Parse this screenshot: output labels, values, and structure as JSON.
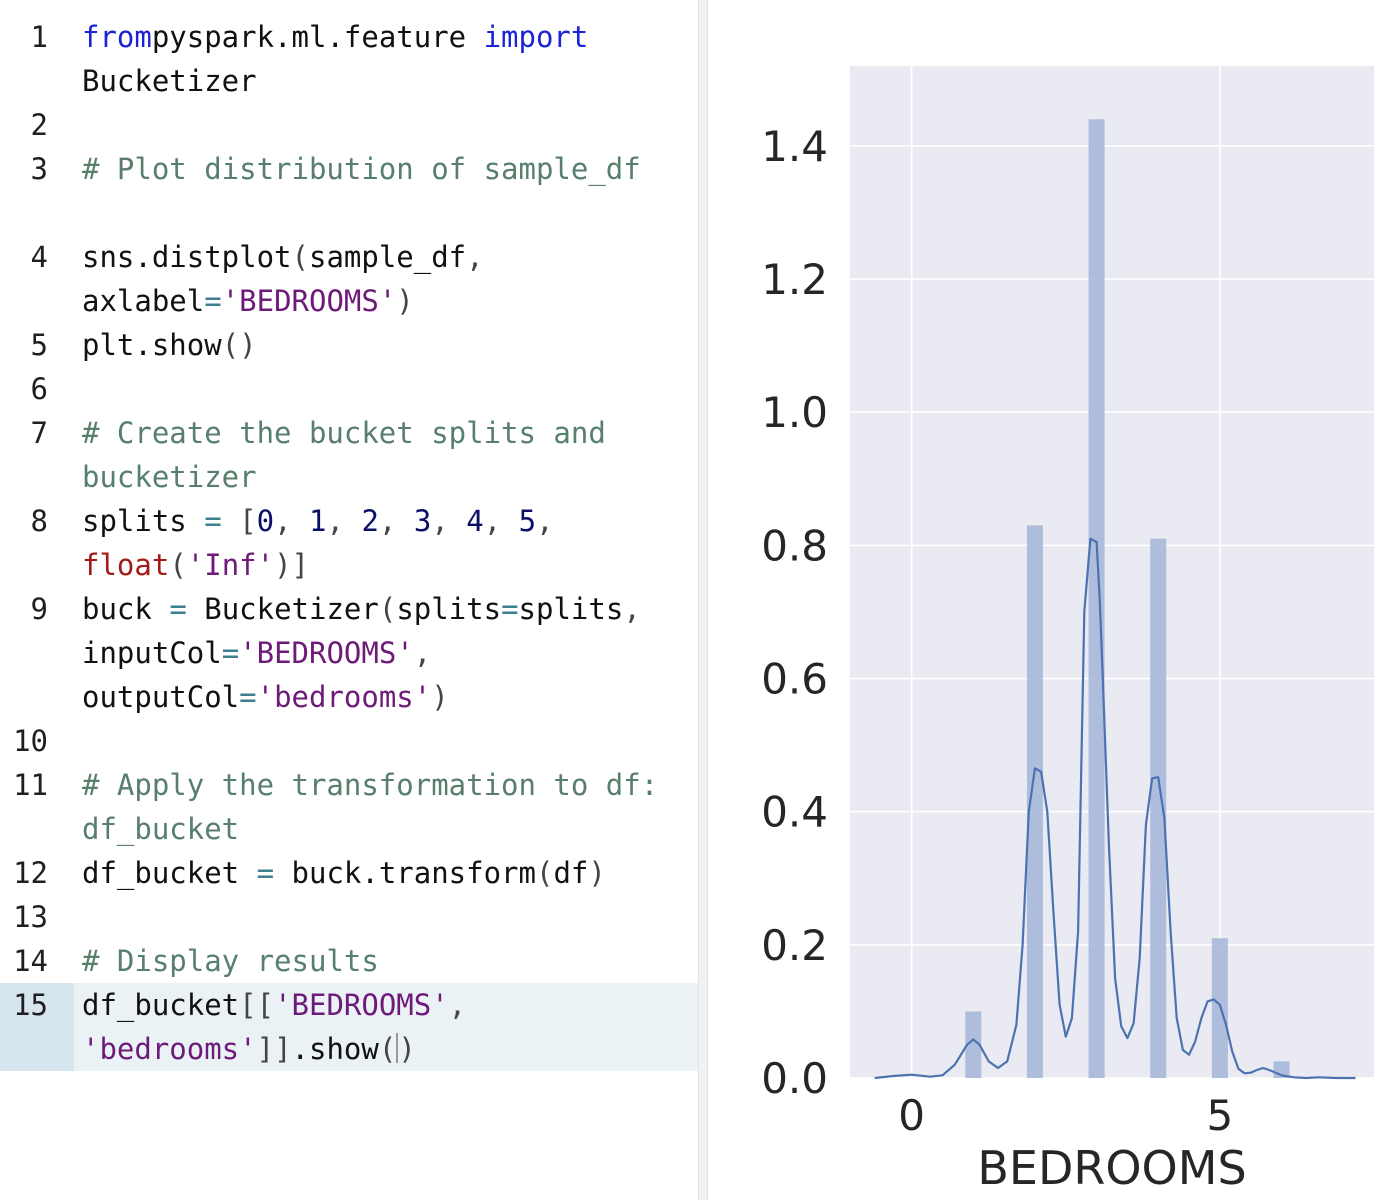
{
  "editor": {
    "lines": [
      {
        "num": "1",
        "wraps": 2,
        "tokens": [
          [
            "k",
            "from"
          ],
          [
            "",
            "pyspark.ml.feature "
          ],
          [
            "k",
            "import"
          ],
          [
            "",
            " Bucketizer"
          ]
        ]
      },
      {
        "num": "2",
        "wraps": 1,
        "tokens": []
      },
      {
        "num": "3",
        "wraps": 2,
        "tokens": [
          [
            "c",
            "# Plot distribution of sample_df"
          ]
        ]
      },
      {
        "num": "4",
        "wraps": 2,
        "tokens": [
          [
            "",
            "sns.distplot"
          ],
          [
            "p",
            "("
          ],
          [
            "",
            "sample_df"
          ],
          [
            "p",
            ","
          ],
          [
            "",
            " axlabel"
          ],
          [
            "o",
            "="
          ],
          [
            "s",
            "'BEDROOMS'"
          ],
          [
            "p",
            ")"
          ]
        ]
      },
      {
        "num": "5",
        "wraps": 1,
        "tokens": [
          [
            "",
            "plt.show"
          ],
          [
            "p",
            "()"
          ]
        ]
      },
      {
        "num": "6",
        "wraps": 1,
        "tokens": []
      },
      {
        "num": "7",
        "wraps": 2,
        "tokens": [
          [
            "c",
            "# Create the bucket splits and bucketizer"
          ]
        ]
      },
      {
        "num": "8",
        "wraps": 2,
        "tokens": [
          [
            "",
            "splits "
          ],
          [
            "o",
            "="
          ],
          [
            "",
            " "
          ],
          [
            "p",
            "["
          ],
          [
            "n",
            "0"
          ],
          [
            "p",
            ","
          ],
          [
            "",
            " "
          ],
          [
            "n",
            "1"
          ],
          [
            "p",
            ","
          ],
          [
            "",
            " "
          ],
          [
            "n",
            "2"
          ],
          [
            "p",
            ","
          ],
          [
            "",
            " "
          ],
          [
            "n",
            "3"
          ],
          [
            "p",
            ","
          ],
          [
            "",
            " "
          ],
          [
            "n",
            "4"
          ],
          [
            "p",
            ","
          ],
          [
            "",
            " "
          ],
          [
            "n",
            "5"
          ],
          [
            "p",
            ","
          ],
          [
            "",
            " "
          ],
          [
            "f",
            "float"
          ],
          [
            "p",
            "("
          ],
          [
            "s",
            "'Inf'"
          ],
          [
            "p",
            ")]"
          ]
        ]
      },
      {
        "num": "9",
        "wraps": 3,
        "tokens": [
          [
            "",
            "buck "
          ],
          [
            "o",
            "="
          ],
          [
            "",
            " Bucketizer"
          ],
          [
            "p",
            "("
          ],
          [
            "",
            "splits"
          ],
          [
            "o",
            "="
          ],
          [
            "",
            "splits"
          ],
          [
            "p",
            ","
          ],
          [
            "",
            " inputCol"
          ],
          [
            "o",
            "="
          ],
          [
            "s",
            "'BEDROOMS'"
          ],
          [
            "p",
            ","
          ],
          [
            "",
            " outputCol"
          ],
          [
            "o",
            "="
          ],
          [
            "s",
            "'bedrooms'"
          ],
          [
            "p",
            ")"
          ]
        ]
      },
      {
        "num": "10",
        "wraps": 1,
        "tokens": []
      },
      {
        "num": "11",
        "wraps": 2,
        "tokens": [
          [
            "c",
            "# Apply the transformation to df: df_bucket"
          ]
        ]
      },
      {
        "num": "12",
        "wraps": 1,
        "tokens": [
          [
            "",
            "df_bucket "
          ],
          [
            "o",
            "="
          ],
          [
            "",
            " buck.transform"
          ],
          [
            "p",
            "("
          ],
          [
            "",
            "df"
          ],
          [
            "p",
            ")"
          ]
        ]
      },
      {
        "num": "13",
        "wraps": 1,
        "tokens": []
      },
      {
        "num": "14",
        "wraps": 1,
        "tokens": [
          [
            "c",
            "# Display results"
          ]
        ]
      },
      {
        "num": "15",
        "wraps": 2,
        "active": true,
        "tokens": [
          [
            "",
            "df_bucket"
          ],
          [
            "p",
            "[["
          ],
          [
            "s",
            "'BEDROOMS'"
          ],
          [
            "p",
            ","
          ],
          [
            "",
            " "
          ],
          [
            "s",
            "'bedrooms'"
          ],
          [
            "p",
            "]]"
          ],
          [
            "",
            ".show"
          ],
          [
            "p",
            "("
          ],
          [
            "cursor",
            ""
          ],
          [
            "p",
            ")"
          ]
        ]
      }
    ]
  },
  "chart_data": {
    "type": "bar",
    "xlabel": "BEDROOMS",
    "ylabel": "",
    "xlim": [
      -1.0,
      7.5
    ],
    "ylim": [
      0.0,
      1.52
    ],
    "xticks": [
      {
        "value": 0,
        "label": "0"
      },
      {
        "value": 5,
        "label": "5"
      }
    ],
    "yticks": [
      {
        "value": 0.0,
        "label": "0.0"
      },
      {
        "value": 0.2,
        "label": "0.2"
      },
      {
        "value": 0.4,
        "label": "0.4"
      },
      {
        "value": 0.6,
        "label": "0.6"
      },
      {
        "value": 0.8,
        "label": "0.8"
      },
      {
        "value": 1.0,
        "label": "1.0"
      },
      {
        "value": 1.2,
        "label": "1.2"
      },
      {
        "value": 1.4,
        "label": "1.4"
      }
    ],
    "grid": true,
    "bar_color": "#a9b8da",
    "line_color": "#4c72b0",
    "background": "#eaeaf2",
    "bars": [
      {
        "x0": 0.87,
        "x1": 1.13,
        "value": 0.1
      },
      {
        "x0": 1.87,
        "x1": 2.13,
        "value": 0.83
      },
      {
        "x0": 2.87,
        "x1": 3.13,
        "value": 1.44
      },
      {
        "x0": 3.87,
        "x1": 4.13,
        "value": 0.81
      },
      {
        "x0": 4.87,
        "x1": 5.13,
        "value": 0.21
      },
      {
        "x0": 5.87,
        "x1": 6.13,
        "value": 0.025
      }
    ],
    "kde": {
      "x": [
        -0.6,
        -0.3,
        0.0,
        0.3,
        0.5,
        0.7,
        0.9,
        1.0,
        1.1,
        1.25,
        1.4,
        1.55,
        1.7,
        1.8,
        1.9,
        2.0,
        2.1,
        2.2,
        2.3,
        2.4,
        2.5,
        2.6,
        2.7,
        2.8,
        2.9,
        3.0,
        3.05,
        3.1,
        3.2,
        3.3,
        3.4,
        3.5,
        3.6,
        3.7,
        3.8,
        3.9,
        4.0,
        4.1,
        4.2,
        4.3,
        4.4,
        4.5,
        4.6,
        4.7,
        4.8,
        4.9,
        5.0,
        5.1,
        5.2,
        5.3,
        5.4,
        5.5,
        5.6,
        5.7,
        5.8,
        6.0,
        6.2,
        6.4,
        6.6,
        6.9,
        7.2
      ],
      "y": [
        0.0,
        0.003,
        0.005,
        0.002,
        0.004,
        0.02,
        0.05,
        0.058,
        0.05,
        0.025,
        0.015,
        0.025,
        0.08,
        0.2,
        0.4,
        0.465,
        0.46,
        0.4,
        0.25,
        0.11,
        0.062,
        0.09,
        0.22,
        0.7,
        0.81,
        0.805,
        0.72,
        0.6,
        0.35,
        0.15,
        0.078,
        0.06,
        0.082,
        0.18,
        0.38,
        0.45,
        0.452,
        0.39,
        0.22,
        0.09,
        0.042,
        0.035,
        0.055,
        0.09,
        0.115,
        0.118,
        0.11,
        0.08,
        0.04,
        0.014,
        0.007,
        0.008,
        0.012,
        0.015,
        0.012,
        0.004,
        0.001,
        0.0,
        0.001,
        0.0,
        0.0
      ]
    }
  }
}
